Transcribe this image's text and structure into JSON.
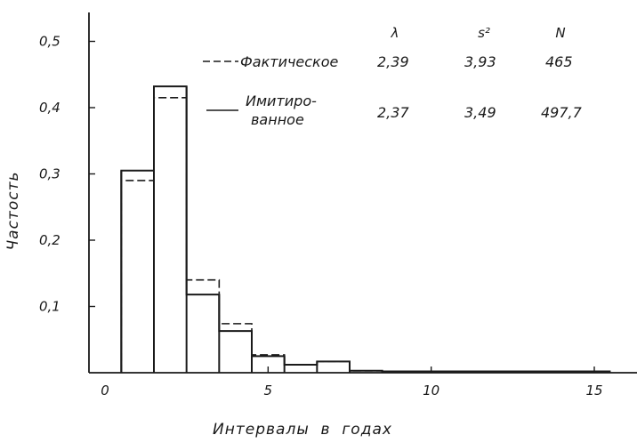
{
  "chart_data": {
    "type": "histogram",
    "title": "",
    "xlabel": "Интервалы  в  годах",
    "ylabel": "Частость",
    "xlim": [
      0,
      16
    ],
    "ylim": [
      0,
      0.55
    ],
    "x_ticks": [
      "0",
      "5",
      "10",
      "15"
    ],
    "y_ticks": [
      "0,1",
      "0,2",
      "0,3",
      "0,4",
      "0,5"
    ],
    "bin_edges": [
      0.5,
      1.5,
      2.5,
      3.5,
      4.5,
      5.5,
      6.5,
      7.5,
      8.5,
      15.5
    ],
    "series": [
      {
        "name": "Фактическое",
        "style": "dashed",
        "values": [
          0.29,
          0.415,
          0.14,
          0.074,
          0.027,
          0.012,
          0.017,
          0.003,
          0.002
        ]
      },
      {
        "name": "Имитированное",
        "style": "solid",
        "values": [
          0.305,
          0.432,
          0.118,
          0.063,
          0.025,
          0.012,
          0.017,
          0.003,
          0.002
        ]
      }
    ],
    "legend": {
      "columns": [
        "λ",
        "s²",
        "N"
      ],
      "rows": [
        {
          "label": "Фактическое",
          "values": [
            "2,39",
            "3,93",
            "465"
          ]
        },
        {
          "label_line1": "Имитиро-",
          "label_line2": "ванное",
          "values": [
            "2,37",
            "3,49",
            "497,7"
          ]
        }
      ]
    }
  }
}
